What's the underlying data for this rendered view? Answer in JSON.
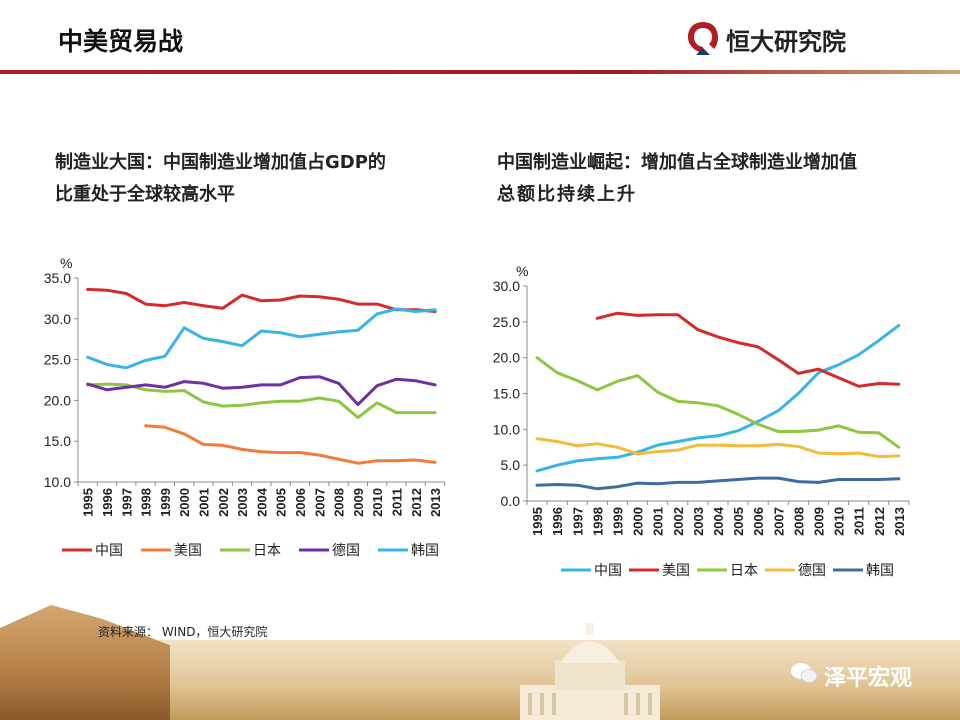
{
  "header": {
    "title": "中美贸易战",
    "brand_name": "恒大研究院",
    "brand_color": "#b01e23"
  },
  "left_panel": {
    "title_line1": "制造业大国：中国制造业增加值占GDP的",
    "title_line2": "比重处于全球较高水平"
  },
  "right_panel": {
    "title_line1": "中国制造业崛起：增加值占全球制造业增加值",
    "title_line2": "总额比持续上升"
  },
  "source": "资料来源：  WIND，恒大研究院",
  "watermark": "泽平宏观",
  "chart_data": [
    {
      "type": "line",
      "title": "制造业大国：中国制造业增加值占GDP的比重处于全球较高水平",
      "ylabel": "%",
      "xlabel": "",
      "ylim": [
        10.0,
        35.0
      ],
      "yticks": [
        "10.0",
        "15.0",
        "20.0",
        "25.0",
        "30.0",
        "35.0"
      ],
      "grid": false,
      "legend_position": "bottom",
      "x": [
        "1995",
        "1996",
        "1997",
        "1998",
        "1999",
        "2000",
        "2001",
        "2002",
        "2003",
        "2004",
        "2005",
        "2006",
        "2007",
        "2008",
        "2009",
        "2010",
        "2011",
        "2012",
        "2013"
      ],
      "series": [
        {
          "name": "中国",
          "color": "#d42a2a",
          "values": [
            33.6,
            33.5,
            33.1,
            31.8,
            31.6,
            32.0,
            31.6,
            31.3,
            32.9,
            32.2,
            32.3,
            32.8,
            32.7,
            32.4,
            31.8,
            31.8,
            31.1,
            31.1,
            30.9
          ]
        },
        {
          "name": "美国",
          "color": "#f07c3a",
          "values": [
            null,
            null,
            null,
            16.9,
            16.7,
            15.9,
            14.6,
            14.5,
            14.0,
            13.7,
            13.6,
            13.6,
            13.3,
            12.8,
            12.3,
            12.6,
            12.6,
            12.7,
            12.4
          ]
        },
        {
          "name": "日本",
          "color": "#8dc63f",
          "values": [
            21.9,
            22.0,
            21.9,
            21.3,
            21.1,
            21.2,
            19.8,
            19.3,
            19.4,
            19.7,
            19.9,
            19.9,
            20.3,
            19.9,
            17.9,
            19.7,
            18.5,
            18.5,
            18.5
          ]
        },
        {
          "name": "德国",
          "color": "#7030a0",
          "values": [
            22.0,
            21.3,
            21.6,
            21.9,
            21.6,
            22.3,
            22.1,
            21.5,
            21.6,
            21.9,
            21.9,
            22.8,
            22.9,
            22.1,
            19.5,
            21.8,
            22.6,
            22.4,
            21.9
          ]
        },
        {
          "name": "韩国",
          "color": "#36b5e6",
          "values": [
            25.3,
            24.4,
            24.0,
            24.9,
            25.4,
            28.9,
            27.6,
            27.2,
            26.7,
            28.5,
            28.3,
            27.8,
            28.1,
            28.4,
            28.6,
            30.6,
            31.2,
            30.9,
            31.1
          ]
        }
      ]
    },
    {
      "type": "line",
      "title": "中国制造业崛起：增加值占全球制造业增加值总额比持续上升",
      "ylabel": "%",
      "xlabel": "",
      "ylim": [
        0.0,
        30.0
      ],
      "yticks": [
        "0.0",
        "5.0",
        "10.0",
        "15.0",
        "20.0",
        "25.0",
        "30.0"
      ],
      "grid": false,
      "legend_position": "bottom",
      "x": [
        "1995",
        "1996",
        "1997",
        "1998",
        "1999",
        "2000",
        "2001",
        "2002",
        "2003",
        "2004",
        "2005",
        "2006",
        "2007",
        "2008",
        "2009",
        "2010",
        "2011",
        "2012",
        "2013"
      ],
      "series": [
        {
          "name": "中国",
          "color": "#36b5e6",
          "values": [
            4.2,
            5.0,
            5.6,
            5.9,
            6.1,
            6.8,
            7.8,
            8.3,
            8.8,
            9.1,
            9.8,
            11.1,
            12.6,
            15.0,
            17.9,
            19.0,
            20.4,
            22.4,
            24.5
          ]
        },
        {
          "name": "美国",
          "color": "#d42a2a",
          "values": [
            null,
            null,
            null,
            25.5,
            26.2,
            25.9,
            26.0,
            26.0,
            23.9,
            22.9,
            22.1,
            21.5,
            19.7,
            17.8,
            18.4,
            17.2,
            16.0,
            16.4,
            16.3
          ]
        },
        {
          "name": "日本",
          "color": "#8dc63f",
          "values": [
            20.0,
            17.9,
            16.8,
            15.5,
            16.7,
            17.5,
            15.2,
            13.9,
            13.7,
            13.3,
            12.1,
            10.7,
            9.7,
            9.7,
            9.9,
            10.5,
            9.6,
            9.5,
            7.5
          ]
        },
        {
          "name": "德国",
          "color": "#f5b93d",
          "values": [
            8.7,
            8.3,
            7.7,
            8.0,
            7.5,
            6.6,
            6.9,
            7.1,
            7.8,
            7.8,
            7.7,
            7.7,
            7.9,
            7.6,
            6.7,
            6.6,
            6.7,
            6.2,
            6.3
          ]
        },
        {
          "name": "韩国",
          "color": "#3d6d9e",
          "values": [
            2.2,
            2.3,
            2.2,
            1.7,
            2.0,
            2.5,
            2.4,
            2.6,
            2.6,
            2.8,
            3.0,
            3.2,
            3.2,
            2.7,
            2.6,
            3.0,
            3.0,
            3.0,
            3.1
          ]
        }
      ]
    }
  ]
}
